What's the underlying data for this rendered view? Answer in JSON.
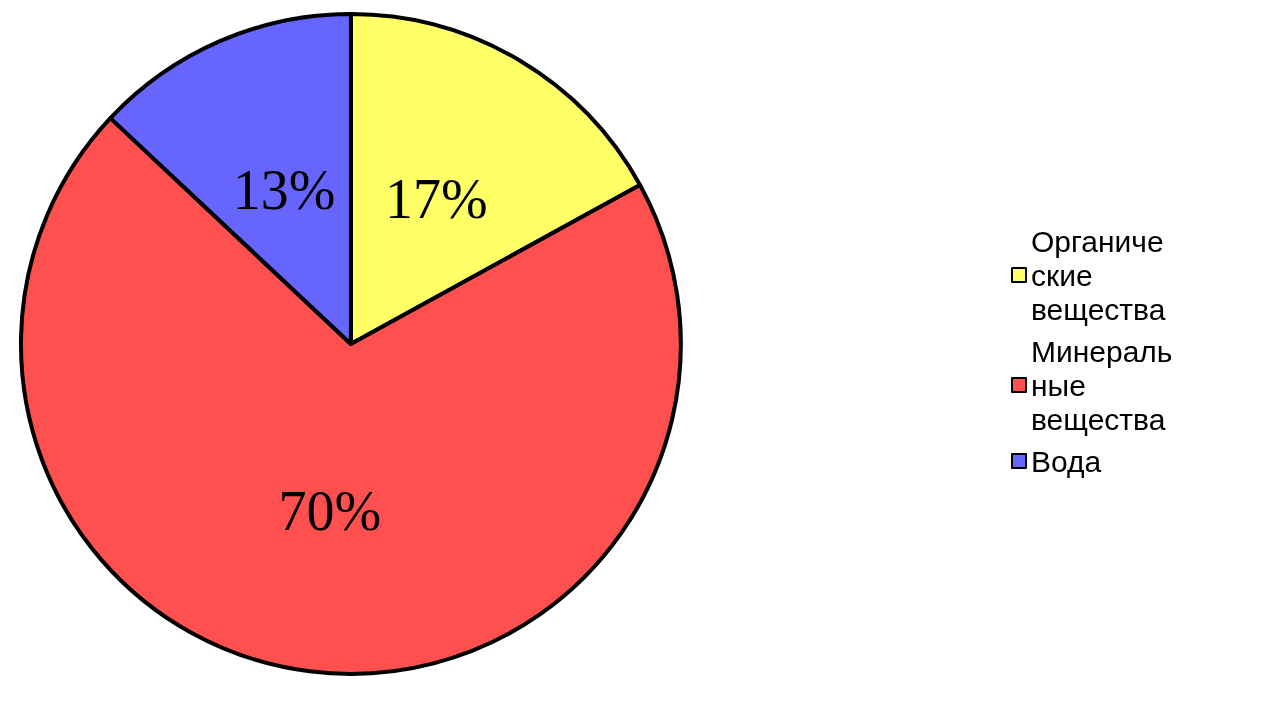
{
  "chart_data": {
    "type": "pie",
    "categories": [
      "Органические вещества",
      "Минеральные вещества",
      "Вода"
    ],
    "values": [
      17,
      70,
      13
    ],
    "value_labels": [
      "17%",
      "70%",
      "13%"
    ],
    "colors": [
      "#ffff66",
      "#ff5050",
      "#6666ff"
    ],
    "legend": "right"
  }
}
